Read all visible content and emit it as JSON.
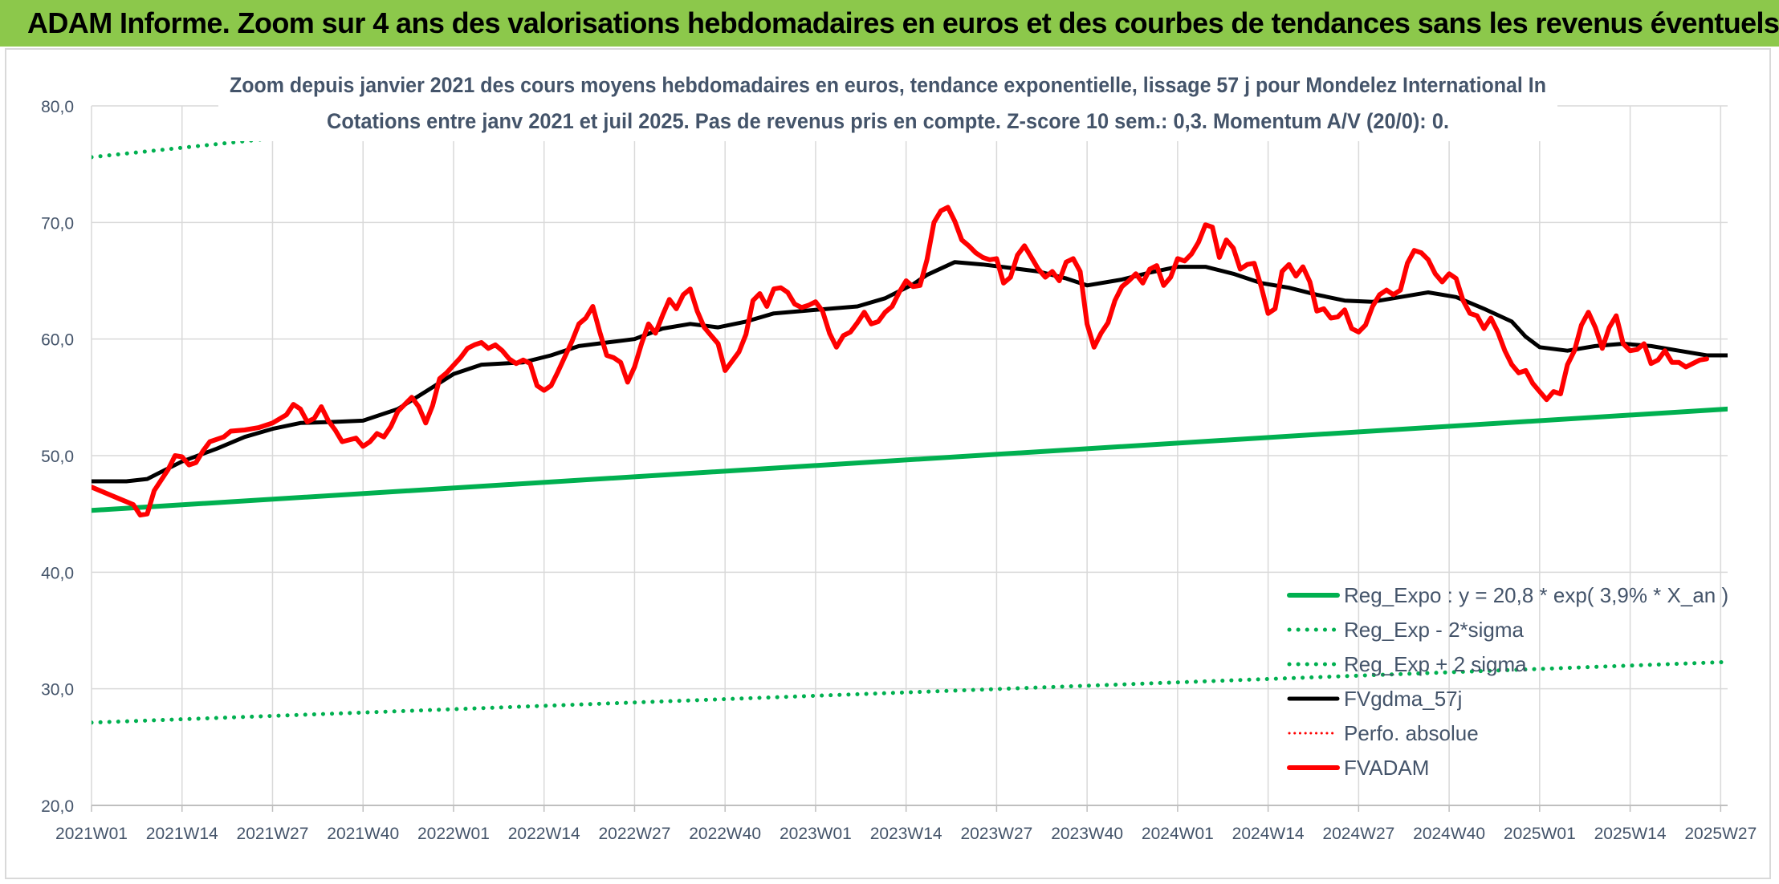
{
  "banner": {
    "title": "ADAM Informe. Zoom sur 4 ans des valorisations hebdomadaires en euros et des courbes de tendances sans les revenus éventuels",
    "color": "#8cc84b"
  },
  "chart_data": {
    "type": "line",
    "title": "Zoom depuis janvier 2021 des cours moyens hebdomadaires en euros, tendance exponentielle, lissage 57 j pour Mondelez International In",
    "subtitle": "Cotations entre janv 2021 et juil 2025. Pas de revenus pris en compte. Z-score 10 sem.: 0,3. Momentum A/V (20/0): 0.",
    "xlabel": "",
    "ylabel": "",
    "ylim": [
      20,
      80
    ],
    "yticks": [
      "20,0",
      "30,0",
      "40,0",
      "50,0",
      "60,0",
      "70,0",
      "80,0"
    ],
    "x_range_weeks": [
      0,
      235
    ],
    "xticks": [
      {
        "label": "2021W01",
        "week": 0
      },
      {
        "label": "2021W14",
        "week": 13
      },
      {
        "label": "2021W27",
        "week": 26
      },
      {
        "label": "2021W40",
        "week": 39
      },
      {
        "label": "2022W01",
        "week": 52
      },
      {
        "label": "2022W14",
        "week": 65
      },
      {
        "label": "2022W27",
        "week": 78
      },
      {
        "label": "2022W40",
        "week": 91
      },
      {
        "label": "2023W01",
        "week": 104
      },
      {
        "label": "2023W14",
        "week": 117
      },
      {
        "label": "2023W27",
        "week": 130
      },
      {
        "label": "2023W40",
        "week": 143
      },
      {
        "label": "2024W01",
        "week": 156
      },
      {
        "label": "2024W14",
        "week": 169
      },
      {
        "label": "2024W27",
        "week": 182
      },
      {
        "label": "2024W40",
        "week": 195
      },
      {
        "label": "2025W01",
        "week": 208
      },
      {
        "label": "2025W14",
        "week": 221
      },
      {
        "label": "2025W27",
        "week": 234
      }
    ],
    "grid": true,
    "legend_position": "bottom-right",
    "series": [
      {
        "name": "Reg_Expo : y = 20,8 * exp( 3,9% *  X_an )",
        "style": "solid",
        "color": "#00b050",
        "width": 6,
        "points": [
          [
            0,
            45.3
          ],
          [
            235,
            54.0
          ]
        ]
      },
      {
        "name": "Reg_Exp - 2*sigma",
        "style": "dotted",
        "color": "#00b050",
        "width": 5,
        "points": [
          [
            0,
            27.1
          ],
          [
            235,
            32.3
          ]
        ]
      },
      {
        "name": "Reg_Exp + 2 sigma",
        "style": "dotted",
        "color": "#00b050",
        "width": 5,
        "points": [
          [
            0,
            75.6
          ],
          [
            235,
            90.2
          ]
        ]
      },
      {
        "name": "FVgdma_57j",
        "style": "solid",
        "color": "#000000",
        "width": 5,
        "points": [
          [
            0,
            47.8
          ],
          [
            5,
            47.8
          ],
          [
            8,
            48.0
          ],
          [
            10,
            48.6
          ],
          [
            13,
            49.5
          ],
          [
            18,
            50.6
          ],
          [
            22,
            51.6
          ],
          [
            26,
            52.3
          ],
          [
            30,
            52.8
          ],
          [
            35,
            52.9
          ],
          [
            39,
            53.0
          ],
          [
            44,
            54.0
          ],
          [
            48,
            55.5
          ],
          [
            52,
            57.0
          ],
          [
            56,
            57.8
          ],
          [
            62,
            58.0
          ],
          [
            66,
            58.6
          ],
          [
            70,
            59.4
          ],
          [
            74,
            59.7
          ],
          [
            78,
            60.0
          ],
          [
            82,
            60.9
          ],
          [
            86,
            61.3
          ],
          [
            90,
            61.0
          ],
          [
            94,
            61.5
          ],
          [
            98,
            62.2
          ],
          [
            104,
            62.5
          ],
          [
            110,
            62.8
          ],
          [
            114,
            63.5
          ],
          [
            118,
            64.7
          ],
          [
            120,
            65.5
          ],
          [
            124,
            66.6
          ],
          [
            128,
            66.4
          ],
          [
            132,
            66.1
          ],
          [
            136,
            65.8
          ],
          [
            140,
            65.2
          ],
          [
            143,
            64.6
          ],
          [
            148,
            65.1
          ],
          [
            152,
            65.7
          ],
          [
            156,
            66.2
          ],
          [
            160,
            66.2
          ],
          [
            164,
            65.6
          ],
          [
            168,
            64.8
          ],
          [
            172,
            64.4
          ],
          [
            176,
            63.8
          ],
          [
            180,
            63.3
          ],
          [
            184,
            63.2
          ],
          [
            188,
            63.6
          ],
          [
            192,
            64.0
          ],
          [
            196,
            63.6
          ],
          [
            200,
            62.6
          ],
          [
            204,
            61.5
          ],
          [
            206,
            60.2
          ],
          [
            208,
            59.3
          ],
          [
            212,
            59.0
          ],
          [
            216,
            59.4
          ],
          [
            220,
            59.6
          ],
          [
            224,
            59.4
          ],
          [
            228,
            59.0
          ],
          [
            232,
            58.6
          ],
          [
            235,
            58.6
          ]
        ]
      },
      {
        "name": "Perfo. absolue",
        "style": "dotted",
        "color": "#ff0000",
        "width": 3,
        "points": []
      },
      {
        "name": "FVADAM",
        "style": "solid",
        "color": "#ff0000",
        "width": 6,
        "points": [
          [
            0,
            47.3
          ],
          [
            2,
            46.8
          ],
          [
            4,
            46.3
          ],
          [
            6,
            45.8
          ],
          [
            7,
            44.9
          ],
          [
            8,
            45.0
          ],
          [
            9,
            47.0
          ],
          [
            11,
            48.8
          ],
          [
            12,
            50.0
          ],
          [
            13,
            49.9
          ],
          [
            14,
            49.2
          ],
          [
            15,
            49.4
          ],
          [
            16,
            50.4
          ],
          [
            17,
            51.2
          ],
          [
            19,
            51.6
          ],
          [
            20,
            52.1
          ],
          [
            22,
            52.2
          ],
          [
            24,
            52.4
          ],
          [
            26,
            52.8
          ],
          [
            28,
            53.5
          ],
          [
            29,
            54.4
          ],
          [
            30,
            54.0
          ],
          [
            31,
            52.9
          ],
          [
            32,
            53.2
          ],
          [
            33,
            54.2
          ],
          [
            34,
            53.0
          ],
          [
            35,
            52.2
          ],
          [
            36,
            51.2
          ],
          [
            38,
            51.5
          ],
          [
            39,
            50.8
          ],
          [
            40,
            51.2
          ],
          [
            41,
            51.9
          ],
          [
            42,
            51.6
          ],
          [
            43,
            52.5
          ],
          [
            44,
            53.8
          ],
          [
            46,
            55.0
          ],
          [
            47,
            54.2
          ],
          [
            48,
            52.8
          ],
          [
            49,
            54.3
          ],
          [
            50,
            56.6
          ],
          [
            51,
            57.1
          ],
          [
            53,
            58.4
          ],
          [
            54,
            59.2
          ],
          [
            55,
            59.5
          ],
          [
            56,
            59.7
          ],
          [
            57,
            59.2
          ],
          [
            58,
            59.5
          ],
          [
            59,
            59.0
          ],
          [
            60,
            58.3
          ],
          [
            61,
            57.9
          ],
          [
            62,
            58.2
          ],
          [
            63,
            57.9
          ],
          [
            64,
            56.0
          ],
          [
            65,
            55.6
          ],
          [
            66,
            56.0
          ],
          [
            67,
            57.2
          ],
          [
            68,
            58.5
          ],
          [
            69,
            59.8
          ],
          [
            70,
            61.3
          ],
          [
            71,
            61.8
          ],
          [
            72,
            62.8
          ],
          [
            73,
            60.6
          ],
          [
            74,
            58.6
          ],
          [
            75,
            58.4
          ],
          [
            76,
            58.0
          ],
          [
            77,
            56.3
          ],
          [
            78,
            57.6
          ],
          [
            79,
            59.6
          ],
          [
            80,
            61.3
          ],
          [
            81,
            60.5
          ],
          [
            82,
            62.0
          ],
          [
            83,
            63.4
          ],
          [
            84,
            62.6
          ],
          [
            85,
            63.8
          ],
          [
            86,
            64.3
          ],
          [
            87,
            62.4
          ],
          [
            88,
            61.0
          ],
          [
            89,
            60.3
          ],
          [
            90,
            59.6
          ],
          [
            91,
            57.3
          ],
          [
            92,
            58.1
          ],
          [
            93,
            58.9
          ],
          [
            94,
            60.4
          ],
          [
            95,
            63.3
          ],
          [
            96,
            63.9
          ],
          [
            97,
            62.8
          ],
          [
            98,
            64.3
          ],
          [
            99,
            64.4
          ],
          [
            100,
            64.0
          ],
          [
            101,
            63.0
          ],
          [
            102,
            62.7
          ],
          [
            103,
            62.9
          ],
          [
            104,
            63.2
          ],
          [
            105,
            62.4
          ],
          [
            106,
            60.5
          ],
          [
            107,
            59.3
          ],
          [
            108,
            60.3
          ],
          [
            109,
            60.6
          ],
          [
            110,
            61.4
          ],
          [
            111,
            62.3
          ],
          [
            112,
            61.3
          ],
          [
            113,
            61.5
          ],
          [
            114,
            62.3
          ],
          [
            115,
            62.8
          ],
          [
            116,
            64.0
          ],
          [
            117,
            65.0
          ],
          [
            118,
            64.5
          ],
          [
            119,
            64.6
          ],
          [
            120,
            66.8
          ],
          [
            121,
            70.0
          ],
          [
            122,
            71.0
          ],
          [
            123,
            71.3
          ],
          [
            124,
            70.1
          ],
          [
            125,
            68.5
          ],
          [
            126,
            68.0
          ],
          [
            127,
            67.4
          ],
          [
            128,
            67.0
          ],
          [
            129,
            66.8
          ],
          [
            130,
            66.9
          ],
          [
            131,
            64.8
          ],
          [
            132,
            65.3
          ],
          [
            133,
            67.2
          ],
          [
            134,
            68.0
          ],
          [
            135,
            67.0
          ],
          [
            136,
            66.0
          ],
          [
            137,
            65.3
          ],
          [
            138,
            65.8
          ],
          [
            139,
            65.0
          ],
          [
            140,
            66.6
          ],
          [
            141,
            66.9
          ],
          [
            142,
            65.8
          ],
          [
            143,
            61.3
          ],
          [
            144,
            59.3
          ],
          [
            145,
            60.5
          ],
          [
            146,
            61.4
          ],
          [
            147,
            63.3
          ],
          [
            148,
            64.5
          ],
          [
            149,
            65.0
          ],
          [
            150,
            65.6
          ],
          [
            151,
            64.8
          ],
          [
            152,
            66.0
          ],
          [
            153,
            66.3
          ],
          [
            154,
            64.6
          ],
          [
            155,
            65.3
          ],
          [
            156,
            66.9
          ],
          [
            157,
            66.7
          ],
          [
            158,
            67.3
          ],
          [
            159,
            68.3
          ],
          [
            160,
            69.8
          ],
          [
            161,
            69.6
          ],
          [
            162,
            67.0
          ],
          [
            163,
            68.5
          ],
          [
            164,
            67.8
          ],
          [
            165,
            66.0
          ],
          [
            166,
            66.4
          ],
          [
            167,
            66.5
          ],
          [
            168,
            64.5
          ],
          [
            169,
            62.2
          ],
          [
            170,
            62.6
          ],
          [
            171,
            65.8
          ],
          [
            172,
            66.4
          ],
          [
            173,
            65.4
          ],
          [
            174,
            66.2
          ],
          [
            175,
            64.9
          ],
          [
            176,
            62.4
          ],
          [
            177,
            62.6
          ],
          [
            178,
            61.8
          ],
          [
            179,
            61.9
          ],
          [
            180,
            62.5
          ],
          [
            181,
            60.9
          ],
          [
            182,
            60.6
          ],
          [
            183,
            61.2
          ],
          [
            184,
            62.8
          ],
          [
            185,
            63.8
          ],
          [
            186,
            64.2
          ],
          [
            187,
            63.8
          ],
          [
            188,
            64.2
          ],
          [
            189,
            66.5
          ],
          [
            190,
            67.6
          ],
          [
            191,
            67.4
          ],
          [
            192,
            66.8
          ],
          [
            193,
            65.6
          ],
          [
            194,
            64.9
          ],
          [
            195,
            65.6
          ],
          [
            196,
            65.2
          ],
          [
            197,
            63.3
          ],
          [
            198,
            62.2
          ],
          [
            199,
            62.0
          ],
          [
            200,
            60.9
          ],
          [
            201,
            61.8
          ],
          [
            202,
            60.6
          ],
          [
            203,
            59.0
          ],
          [
            204,
            57.8
          ],
          [
            205,
            57.1
          ],
          [
            206,
            57.3
          ],
          [
            207,
            56.2
          ],
          [
            208,
            55.5
          ],
          [
            209,
            54.8
          ],
          [
            210,
            55.5
          ],
          [
            211,
            55.3
          ],
          [
            212,
            57.8
          ],
          [
            213,
            59.0
          ],
          [
            214,
            61.2
          ],
          [
            215,
            62.3
          ],
          [
            216,
            61.0
          ],
          [
            217,
            59.2
          ],
          [
            218,
            61.0
          ],
          [
            219,
            62.0
          ],
          [
            220,
            59.6
          ],
          [
            221,
            59.0
          ],
          [
            222,
            59.1
          ],
          [
            223,
            59.6
          ],
          [
            224,
            57.9
          ],
          [
            225,
            58.2
          ],
          [
            226,
            59.0
          ],
          [
            227,
            58.0
          ],
          [
            228,
            58.0
          ],
          [
            229,
            57.6
          ],
          [
            230,
            57.9
          ],
          [
            231,
            58.2
          ],
          [
            232,
            58.3
          ]
        ]
      }
    ]
  }
}
